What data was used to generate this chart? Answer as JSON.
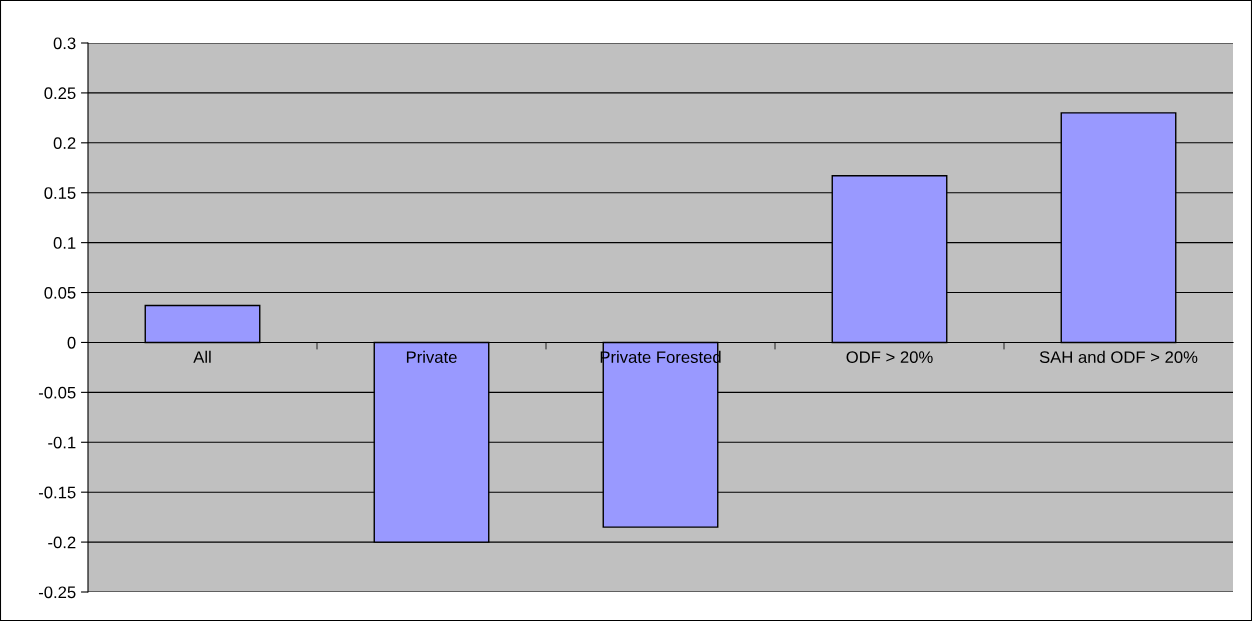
{
  "chart_data": {
    "type": "bar",
    "categories": [
      "All",
      "Private",
      "Private Forested",
      "ODF > 20%",
      "SAH and ODF > 20%"
    ],
    "values": [
      0.037,
      -0.2,
      -0.185,
      0.167,
      0.23
    ],
    "color": "#9999ff",
    "ylim": [
      -0.25,
      0.3
    ],
    "yticks": [
      {
        "value": -0.25,
        "label": "-0.25"
      },
      {
        "value": -0.2,
        "label": "-0.2"
      },
      {
        "value": -0.15,
        "label": "-0.15"
      },
      {
        "value": -0.1,
        "label": "-0.1"
      },
      {
        "value": -0.05,
        "label": "-0.05"
      },
      0,
      0.05,
      0.1,
      0.15,
      0.2,
      0.25,
      0.3
    ],
    "grid": "y",
    "legend": false
  }
}
